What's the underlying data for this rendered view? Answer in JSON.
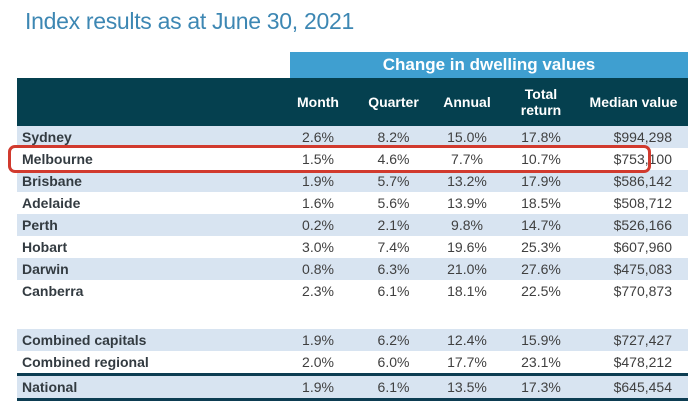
{
  "title": "Index results as at June 30, 2021",
  "table": {
    "banner_label": "Change in dwelling values",
    "columns": {
      "name": "",
      "month": "Month",
      "quarter": "Quarter",
      "annual": "Annual",
      "total_return": "Total return",
      "median_value": "Median value"
    },
    "rows": [
      {
        "name": "Sydney",
        "month": "2.6%",
        "quarter": "8.2%",
        "annual": "15.0%",
        "total_return": "17.8%",
        "median": "$994,298",
        "shaded": true,
        "highlighted": false
      },
      {
        "name": "Melbourne",
        "month": "1.5%",
        "quarter": "4.6%",
        "annual": "7.7%",
        "total_return": "10.7%",
        "median": "$753,100",
        "shaded": false,
        "highlighted": true
      },
      {
        "name": "Brisbane",
        "month": "1.9%",
        "quarter": "5.7%",
        "annual": "13.2%",
        "total_return": "17.9%",
        "median": "$586,142",
        "shaded": true,
        "highlighted": false
      },
      {
        "name": "Adelaide",
        "month": "1.6%",
        "quarter": "5.6%",
        "annual": "13.9%",
        "total_return": "18.5%",
        "median": "$508,712",
        "shaded": false,
        "highlighted": false
      },
      {
        "name": "Perth",
        "month": "0.2%",
        "quarter": "2.1%",
        "annual": "9.8%",
        "total_return": "14.7%",
        "median": "$526,166",
        "shaded": true,
        "highlighted": false
      },
      {
        "name": "Hobart",
        "month": "3.0%",
        "quarter": "7.4%",
        "annual": "19.6%",
        "total_return": "25.3%",
        "median": "$607,960",
        "shaded": false,
        "highlighted": false
      },
      {
        "name": "Darwin",
        "month": "0.8%",
        "quarter": "6.3%",
        "annual": "21.0%",
        "total_return": "27.6%",
        "median": "$475,083",
        "shaded": true,
        "highlighted": false
      },
      {
        "name": "Canberra",
        "month": "2.3%",
        "quarter": "6.1%",
        "annual": "18.1%",
        "total_return": "22.5%",
        "median": "$770,873",
        "shaded": false,
        "highlighted": false
      }
    ],
    "summary_rows": [
      {
        "name": "Combined capitals",
        "month": "1.9%",
        "quarter": "6.2%",
        "annual": "12.4%",
        "total_return": "15.9%",
        "median": "$727,427",
        "shaded": true,
        "rule_before": false,
        "rule_after": false
      },
      {
        "name": "Combined regional",
        "month": "2.0%",
        "quarter": "6.0%",
        "annual": "17.7%",
        "total_return": "23.1%",
        "median": "$478,212",
        "shaded": false,
        "rule_before": false,
        "rule_after": true
      },
      {
        "name": "National",
        "month": "1.9%",
        "quarter": "6.1%",
        "annual": "13.5%",
        "total_return": "17.3%",
        "median": "$645,454",
        "shaded": true,
        "rule_before": false,
        "rule_after": true
      }
    ]
  },
  "colors": {
    "title": "#3d87b3",
    "banner_background": "#3f9fd0",
    "header_background": "#05404f",
    "row_shade": "#d8e4f1",
    "highlight_border": "#d13a2e",
    "rule_line": "#0d3d52",
    "body_text": "#3f3f3f",
    "row_label_text": "#333b41"
  },
  "chart_data": {
    "type": "table",
    "title": "Index results as at June 30, 2021",
    "group_header": "Change in dwelling values",
    "columns": [
      "Month",
      "Quarter",
      "Annual",
      "Total return",
      "Median value"
    ],
    "rows": [
      {
        "label": "Sydney",
        "month_pct": 2.6,
        "quarter_pct": 8.2,
        "annual_pct": 15.0,
        "total_return_pct": 17.8,
        "median_value": 994298
      },
      {
        "label": "Melbourne",
        "month_pct": 1.5,
        "quarter_pct": 4.6,
        "annual_pct": 7.7,
        "total_return_pct": 10.7,
        "median_value": 753100
      },
      {
        "label": "Brisbane",
        "month_pct": 1.9,
        "quarter_pct": 5.7,
        "annual_pct": 13.2,
        "total_return_pct": 17.9,
        "median_value": 586142
      },
      {
        "label": "Adelaide",
        "month_pct": 1.6,
        "quarter_pct": 5.6,
        "annual_pct": 13.9,
        "total_return_pct": 18.5,
        "median_value": 508712
      },
      {
        "label": "Perth",
        "month_pct": 0.2,
        "quarter_pct": 2.1,
        "annual_pct": 9.8,
        "total_return_pct": 14.7,
        "median_value": 526166
      },
      {
        "label": "Hobart",
        "month_pct": 3.0,
        "quarter_pct": 7.4,
        "annual_pct": 19.6,
        "total_return_pct": 25.3,
        "median_value": 607960
      },
      {
        "label": "Darwin",
        "month_pct": 0.8,
        "quarter_pct": 6.3,
        "annual_pct": 21.0,
        "total_return_pct": 27.6,
        "median_value": 475083
      },
      {
        "label": "Canberra",
        "month_pct": 2.3,
        "quarter_pct": 6.1,
        "annual_pct": 18.1,
        "total_return_pct": 22.5,
        "median_value": 770873
      },
      {
        "label": "Combined capitals",
        "month_pct": 1.9,
        "quarter_pct": 6.2,
        "annual_pct": 12.4,
        "total_return_pct": 15.9,
        "median_value": 727427
      },
      {
        "label": "Combined regional",
        "month_pct": 2.0,
        "quarter_pct": 6.0,
        "annual_pct": 17.7,
        "total_return_pct": 23.1,
        "median_value": 478212
      },
      {
        "label": "National",
        "month_pct": 1.9,
        "quarter_pct": 6.1,
        "annual_pct": 13.5,
        "total_return_pct": 17.3,
        "median_value": 645454
      }
    ],
    "annotations": [
      "Melbourne row outlined with red highlight box"
    ]
  }
}
